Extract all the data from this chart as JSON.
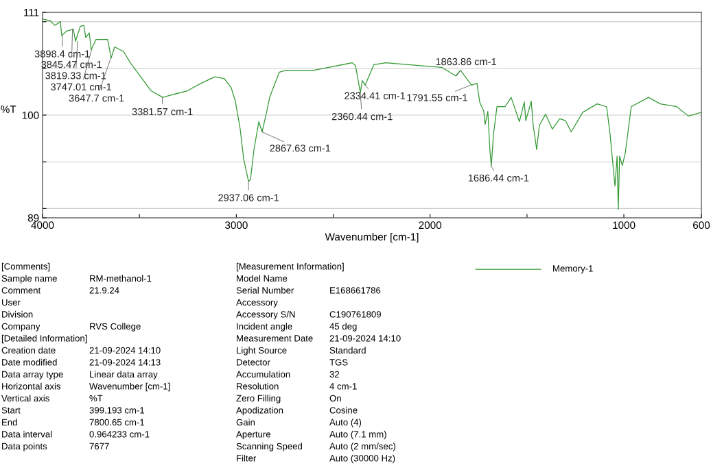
{
  "chart_data": {
    "type": "line",
    "xlabel": "Wavenumber [cm-1]",
    "ylabel": "%T",
    "xlim": [
      4000,
      600
    ],
    "ylim": [
      89,
      111
    ],
    "xticks": [
      4000,
      {
        "value": 3500,
        "label": null
      },
      3000,
      {
        "value": 2500,
        "label": null
      },
      2000,
      {
        "value": 1500,
        "label": null
      },
      1000,
      600
    ],
    "yticks": [
      89,
      {
        "value": 90,
        "label": null
      },
      {
        "value": 95,
        "label": null
      },
      100,
      {
        "value": 105,
        "label": null
      },
      {
        "value": 110,
        "label": null
      },
      111
    ],
    "grid": "y",
    "legend": "bottom right",
    "marker": "none",
    "line_style": "solid",
    "series": [
      {
        "name": "Memory-1",
        "color": "#339933",
        "x": [
          4000,
          3961,
          3936,
          3908,
          3901,
          3876,
          3841,
          3830,
          3805,
          3787,
          3777,
          3759,
          3749,
          3724,
          3688,
          3664,
          3646,
          3628,
          3582,
          3547,
          3511,
          3486,
          3440,
          3380,
          3345,
          3253,
          3182,
          3111,
          3061,
          3026,
          3005,
          2980,
          2962,
          2937,
          2927,
          2909,
          2884,
          2867,
          2845,
          2828,
          2778,
          2743,
          2601,
          2402,
          2385,
          2360,
          2350,
          2335,
          2290,
          2229,
          2059,
          1939,
          1868,
          1843,
          1786,
          1758,
          1744,
          1723,
          1716,
          1702,
          1691,
          1684,
          1673,
          1655,
          1613,
          1582,
          1539,
          1514,
          1506,
          1478,
          1468,
          1450,
          1436,
          1404,
          1369,
          1331,
          1301,
          1272,
          1212,
          1138,
          1089,
          1071,
          1046,
          1035,
          1029,
          1022,
          1008,
          993,
          962,
          873,
          812,
          727,
          667,
          600
        ],
        "values": [
          110.3,
          110.1,
          109.6,
          110.0,
          108.5,
          109.0,
          109.2,
          107.9,
          109.5,
          109.6,
          108.3,
          108.8,
          107.0,
          108.1,
          108.1,
          108.1,
          106.1,
          107.3,
          106.8,
          105.6,
          104.6,
          103.9,
          102.6,
          101.9,
          102.1,
          102.6,
          103.4,
          104.1,
          103.9,
          102.9,
          101.5,
          98.5,
          95.3,
          92.9,
          93.1,
          96.3,
          99.3,
          98.2,
          100.2,
          101.9,
          104.6,
          104.8,
          104.8,
          105.6,
          105.3,
          102.4,
          103.7,
          103.2,
          105.4,
          105.6,
          105.3,
          105.1,
          104.2,
          104.8,
          103.2,
          103.4,
          101.4,
          100.4,
          99.0,
          100.4,
          96.1,
          94.6,
          97.9,
          100.9,
          100.9,
          101.9,
          99.3,
          101.4,
          99.4,
          101.5,
          98.9,
          96.3,
          98.9,
          100.1,
          98.5,
          99.6,
          99.4,
          98.2,
          100.3,
          101.2,
          100.9,
          97.9,
          92.4,
          95.6,
          89.9,
          95.6,
          94.6,
          95.9,
          100.9,
          101.9,
          101.2,
          100.9,
          99.9,
          100.3
        ]
      }
    ],
    "annotations": [
      {
        "text": "3898.4 cm-1",
        "x": 3898.4,
        "y": 108.5
      },
      {
        "text": "3845.47 cm-1",
        "x": 3845.47,
        "y": 109.2
      },
      {
        "text": "3819.33 cm-1",
        "x": 3819.33,
        "y": 107.9
      },
      {
        "text": "3747.01 cm-1",
        "x": 3747.01,
        "y": 107.0
      },
      {
        "text": "3647.7 cm-1",
        "x": 3647.7,
        "y": 106.1
      },
      {
        "text": "3381.57 cm-1",
        "x": 3381.57,
        "y": 101.9
      },
      {
        "text": "2937.06 cm-1",
        "x": 2937.06,
        "y": 92.9
      },
      {
        "text": "2867.63 cm-1",
        "x": 2867.63,
        "y": 98.2
      },
      {
        "text": "2334.41 cm-1",
        "x": 2334.41,
        "y": 103.2
      },
      {
        "text": "2360.44 cm-1",
        "x": 2360.44,
        "y": 102.4
      },
      {
        "text": "1863.86 cm-1",
        "x": 1863.86,
        "y": 104.2
      },
      {
        "text": "1791.55 cm-1",
        "x": 1791.55,
        "y": 103.2
      },
      {
        "text": "1686.44 cm-1",
        "x": 1686.44,
        "y": 94.6
      },
      "[Comments]",
      "Sample name\tRM-methanol-1",
      "Comment\t21.9.24",
      "User",
      "Division",
      "Company\tRVS College",
      "[Detailed Information]",
      "Creation date\t21-09-2024 14:10",
      "Date modified\t21-09-2024 14:13",
      "Data array type\tLinear data array",
      "Horizontal axis\tWavenumber [cm-1]",
      "Vertical axis\t%T",
      "Start\t399.193 cm-1",
      "End\t7800.65 cm-1",
      "Data interval\t0.964233 cm-1",
      "Data points\t7677",
      "[Measurement Information]",
      "Model Name",
      "Serial Number\tE168661786",
      "Accessory",
      "Accessory S/N\tC190761809",
      "Incident angle\t45 deg",
      "Measurement Date\t21-09-2024 14:10",
      "Light Source\tStandard",
      "Detector\tTGS",
      "Accumulation\t32",
      "Resolution\t4 cm-1",
      "Zero Filling\tOn",
      "Apodization\tCosine",
      "Gain\tAuto (4)",
      "Aperture\tAuto (7.1 mm)",
      "Scanning Speed\tAuto (2 mm/sec)",
      "Filter\tAuto (30000 Hz)"
    ]
  }
}
